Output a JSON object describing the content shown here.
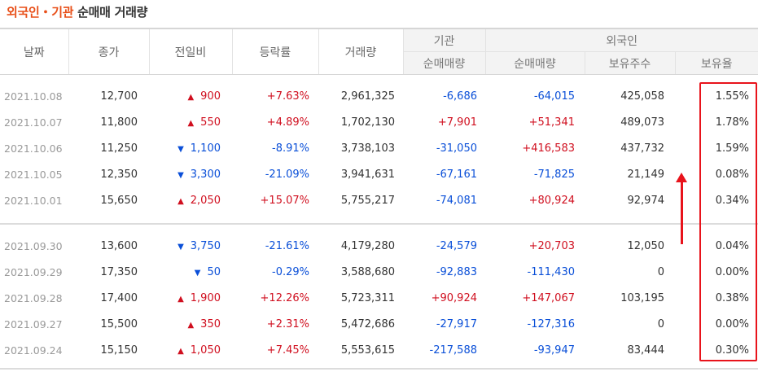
{
  "header": {
    "title_highlight": "외국인・기관",
    "title_rest": "순매매 거래량"
  },
  "columns": {
    "date": "날짜",
    "close": "종가",
    "change": "전일비",
    "rate": "등락률",
    "volume": "거래량",
    "institution": "기관",
    "foreign": "외국인",
    "inst_net": "순매매량",
    "foreign_net": "순매매량",
    "holdings": "보유주수",
    "ratio": "보유율"
  },
  "colors": {
    "up": "#d00f1f",
    "down": "#0a4fd8",
    "highlight_box": "#e8131b",
    "title_accent": "#e8501a"
  },
  "rows_group1": [
    {
      "date": "2021.10.08",
      "close": "12,700",
      "dir": "up",
      "change": "900",
      "rate": "+7.63%",
      "volume": "2,961,325",
      "inst": "-6,686",
      "foreign": "-64,015",
      "holdings": "425,058",
      "ratio": "1.55%"
    },
    {
      "date": "2021.10.07",
      "close": "11,800",
      "dir": "up",
      "change": "550",
      "rate": "+4.89%",
      "volume": "1,702,130",
      "inst": "+7,901",
      "foreign": "+51,341",
      "holdings": "489,073",
      "ratio": "1.78%"
    },
    {
      "date": "2021.10.06",
      "close": "11,250",
      "dir": "down",
      "change": "1,100",
      "rate": "-8.91%",
      "volume": "3,738,103",
      "inst": "-31,050",
      "foreign": "+416,583",
      "holdings": "437,732",
      "ratio": "1.59%"
    },
    {
      "date": "2021.10.05",
      "close": "12,350",
      "dir": "down",
      "change": "3,300",
      "rate": "-21.09%",
      "volume": "3,941,631",
      "inst": "-67,161",
      "foreign": "-71,825",
      "holdings": "21,149",
      "ratio": "0.08%"
    },
    {
      "date": "2021.10.01",
      "close": "15,650",
      "dir": "up",
      "change": "2,050",
      "rate": "+15.07%",
      "volume": "5,755,217",
      "inst": "-74,081",
      "foreign": "+80,924",
      "holdings": "92,974",
      "ratio": "0.34%"
    }
  ],
  "rows_group2": [
    {
      "date": "2021.09.30",
      "close": "13,600",
      "dir": "down",
      "change": "3,750",
      "rate": "-21.61%",
      "volume": "4,179,280",
      "inst": "-24,579",
      "foreign": "+20,703",
      "holdings": "12,050",
      "ratio": "0.04%"
    },
    {
      "date": "2021.09.29",
      "close": "17,350",
      "dir": "down",
      "change": "50",
      "rate": "-0.29%",
      "volume": "3,588,680",
      "inst": "-92,883",
      "foreign": "-111,430",
      "holdings": "0",
      "ratio": "0.00%"
    },
    {
      "date": "2021.09.28",
      "close": "17,400",
      "dir": "up",
      "change": "1,900",
      "rate": "+12.26%",
      "volume": "5,723,311",
      "inst": "+90,924",
      "foreign": "+147,067",
      "holdings": "103,195",
      "ratio": "0.38%"
    },
    {
      "date": "2021.09.27",
      "close": "15,500",
      "dir": "up",
      "change": "350",
      "rate": "+2.31%",
      "volume": "5,472,686",
      "inst": "-27,917",
      "foreign": "-127,316",
      "holdings": "0",
      "ratio": "0.00%"
    },
    {
      "date": "2021.09.24",
      "close": "15,150",
      "dir": "up",
      "change": "1,050",
      "rate": "+7.45%",
      "volume": "5,553,615",
      "inst": "-217,588",
      "foreign": "-93,947",
      "holdings": "83,444",
      "ratio": "0.30%"
    }
  ],
  "icons": {
    "up": "triangle-up-icon",
    "down": "triangle-down-icon"
  }
}
